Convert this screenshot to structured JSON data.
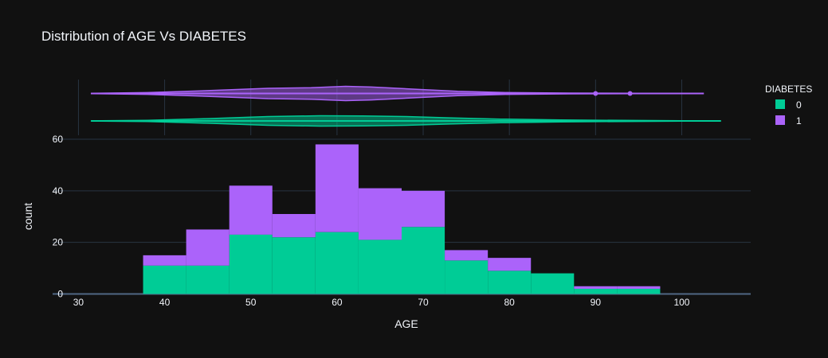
{
  "chart_data": {
    "type": "bar",
    "title": "Distribution of AGE Vs DIABETES",
    "xlabel": "AGE",
    "ylabel": "count",
    "xlim": [
      27,
      108
    ],
    "ylim": [
      0,
      60
    ],
    "x_ticks": [
      30,
      40,
      50,
      60,
      70,
      80,
      90,
      100
    ],
    "y_ticks": [
      0,
      20,
      40,
      60
    ],
    "barmode": "stack",
    "bin_edges": [
      37.5,
      42.5,
      47.5,
      52.5,
      57.5,
      62.5,
      67.5,
      72.5,
      77.5,
      82.5,
      87.5,
      92.5,
      97.5
    ],
    "legend": {
      "title": "DIABETES",
      "placement": "top-right"
    },
    "series": [
      {
        "name": "0",
        "color": "#00cc96",
        "values": [
          11,
          11,
          23,
          22,
          24,
          21,
          26,
          13,
          9,
          8,
          2,
          2
        ]
      },
      {
        "name": "1",
        "color": "#ab63fa",
        "values": [
          4,
          14,
          19,
          9,
          34,
          20,
          14,
          4,
          5,
          0,
          1,
          1
        ]
      }
    ],
    "marginal_violin": [
      {
        "name": "1",
        "color": "#ab63fa",
        "min": 31.5,
        "max": 102.5,
        "outliers": [
          90,
          94
        ],
        "density": [
          [
            31.5,
            0.02
          ],
          [
            38,
            0.12
          ],
          [
            45,
            0.4
          ],
          [
            52,
            0.72
          ],
          [
            57,
            0.8
          ],
          [
            61,
            1.0
          ],
          [
            64,
            0.9
          ],
          [
            69,
            0.6
          ],
          [
            74,
            0.3
          ],
          [
            80,
            0.12
          ],
          [
            87,
            0.06
          ],
          [
            95,
            0.03
          ],
          [
            102.5,
            0.02
          ]
        ]
      },
      {
        "name": "0",
        "color": "#00cc96",
        "min": 31.5,
        "max": 104.5,
        "outliers": [],
        "density": [
          [
            31.5,
            0.02
          ],
          [
            38,
            0.1
          ],
          [
            45,
            0.45
          ],
          [
            52,
            0.85
          ],
          [
            58,
            1.0
          ],
          [
            63,
            0.95
          ],
          [
            68,
            0.85
          ],
          [
            73,
            0.6
          ],
          [
            79,
            0.35
          ],
          [
            86,
            0.18
          ],
          [
            93,
            0.1
          ],
          [
            100,
            0.05
          ],
          [
            104.5,
            0.02
          ]
        ]
      }
    ]
  }
}
